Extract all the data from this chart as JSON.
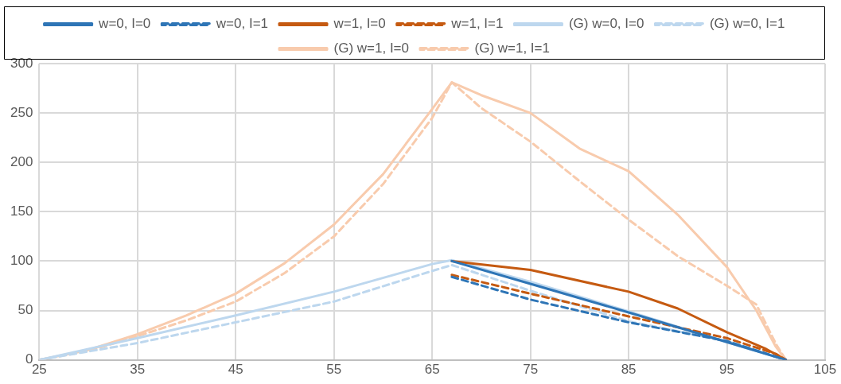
{
  "chart_data": {
    "type": "line",
    "legend": "top",
    "grid": true,
    "marker": "none",
    "xlim": [
      25,
      105
    ],
    "xticks": [
      25,
      35,
      45,
      55,
      65,
      75,
      85,
      95,
      105
    ],
    "ylim": [
      0,
      300
    ],
    "yticks": [
      0,
      50,
      100,
      150,
      200,
      250,
      300
    ],
    "series": [
      {
        "name": "w=0, I=0",
        "color": "#2e75b6",
        "line_style": "solid",
        "x": [
          67,
          75,
          85,
          95,
          101
        ],
        "values": [
          100,
          77,
          48,
          18,
          0
        ]
      },
      {
        "name": "w=0, I=1",
        "color": "#2e75b6",
        "line_style": "dashed",
        "x": [
          67,
          75,
          85,
          95,
          101
        ],
        "values": [
          84,
          61,
          38,
          19,
          0
        ]
      },
      {
        "name": "w=1, I=0",
        "color": "#c55a11",
        "line_style": "solid",
        "x": [
          67,
          75,
          85,
          90,
          95,
          99,
          101
        ],
        "values": [
          100,
          91,
          69,
          52,
          28,
          11,
          0
        ]
      },
      {
        "name": "w=1, I=1",
        "color": "#c55a11",
        "line_style": "dashed",
        "x": [
          67,
          75,
          85,
          95,
          100,
          101
        ],
        "values": [
          86,
          67,
          44,
          22,
          6,
          0
        ]
      },
      {
        "name": "(G) w=0, I=0",
        "color": "#bdd7ee",
        "line_style": "solid",
        "x": [
          25,
          35,
          45,
          55,
          65,
          67,
          75,
          85,
          95,
          101
        ],
        "values": [
          0,
          22,
          45,
          69,
          97,
          101,
          79,
          49,
          18,
          0
        ]
      },
      {
        "name": "(G) w=0, I=1",
        "color": "#bdd7ee",
        "line_style": "dashed",
        "x": [
          25,
          35,
          45,
          55,
          65,
          67,
          75,
          85,
          95,
          101
        ],
        "values": [
          0,
          17,
          38,
          59,
          90,
          96,
          70,
          39,
          19,
          0
        ]
      },
      {
        "name": "(G) w=1, I=0",
        "color": "#f8cbad",
        "line_style": "solid",
        "x": [
          25,
          30,
          35,
          40,
          45,
          50,
          55,
          60,
          65,
          67,
          70,
          75,
          80,
          85,
          90,
          95,
          98,
          100,
          101
        ],
        "values": [
          0,
          10,
          26,
          45,
          67,
          98,
          137,
          188,
          254,
          281,
          268,
          250,
          214,
          191,
          147,
          94,
          50,
          13,
          0
        ]
      },
      {
        "name": "(G) w=1, I=1",
        "color": "#f8cbad",
        "line_style": "dashed",
        "x": [
          25,
          30,
          35,
          40,
          45,
          50,
          55,
          60,
          65,
          67,
          70,
          75,
          80,
          85,
          90,
          95,
          98,
          100,
          101
        ],
        "values": [
          0,
          9,
          24,
          40,
          59,
          88,
          125,
          178,
          245,
          281,
          255,
          221,
          181,
          142,
          105,
          75,
          56,
          16,
          0
        ]
      }
    ]
  }
}
